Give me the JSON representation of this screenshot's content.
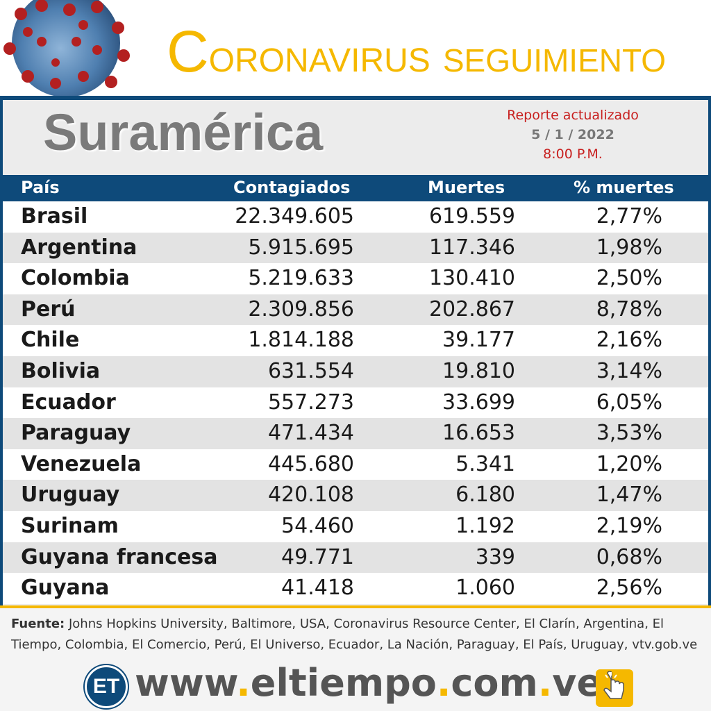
{
  "header": {
    "title_c": "C",
    "title_rest": "ORONAVIRUS",
    "title_2": "SEGUIMIENTO"
  },
  "region": "Suramérica",
  "report": {
    "line1": "Reporte actualizado",
    "date": "5 / 1 / 2022",
    "time": "8:00 P.M."
  },
  "table": {
    "headers": [
      "País",
      "Contagiados",
      "Muertes",
      "% muertes"
    ],
    "rows": [
      {
        "pais": "Brasil",
        "contagiados": "22.349.605",
        "muertes": "619.559",
        "pct": "2,77%"
      },
      {
        "pais": "Argentina",
        "contagiados": "5.915.695",
        "muertes": "117.346",
        "pct": "1,98%"
      },
      {
        "pais": "Colombia",
        "contagiados": "5.219.633",
        "muertes": "130.410",
        "pct": "2,50%"
      },
      {
        "pais": "Perú",
        "contagiados": "2.309.856",
        "muertes": "202.867",
        "pct": "8,78%"
      },
      {
        "pais": "Chile",
        "contagiados": "1.814.188",
        "muertes": "39.177",
        "pct": "2,16%"
      },
      {
        "pais": "Bolivia",
        "contagiados": "631.554",
        "muertes": "19.810",
        "pct": "3,14%"
      },
      {
        "pais": "Ecuador",
        "contagiados": "557.273",
        "muertes": "33.699",
        "pct": "6,05%"
      },
      {
        "pais": "Paraguay",
        "contagiados": "471.434",
        "muertes": "16.653",
        "pct": "3,53%"
      },
      {
        "pais": "Venezuela",
        "contagiados": "445.680",
        "muertes": "5.341",
        "pct": "1,20%"
      },
      {
        "pais": "Uruguay",
        "contagiados": "420.108",
        "muertes": "6.180",
        "pct": "1,47%"
      },
      {
        "pais": "Surinam",
        "contagiados": "54.460",
        "muertes": "1.192",
        "pct": "2,19%"
      },
      {
        "pais": "Guyana francesa",
        "contagiados": "49.771",
        "muertes": "339",
        "pct": "0,68%"
      },
      {
        "pais": "Guyana",
        "contagiados": "41.418",
        "muertes": "1.060",
        "pct": "2,56%"
      }
    ]
  },
  "source": {
    "label": "Fuente:",
    "text": " Johns Hopkins University, Baltimore, USA, Coronavirus Resource Center,  El Clarín, Argentina, El Tiempo, Colombia, El Comercio, Perú, El Universo, Ecuador, La Nación, Paraguay, El País, Uruguay, vtv.gob.ve"
  },
  "brand": {
    "logo": "ET",
    "url_www": "www",
    "url_name": "eltiempo",
    "url_com": "com",
    "url_ve": "ve"
  },
  "colors": {
    "accent_yellow": "#f5b800",
    "navy": "#0e4a7a",
    "red": "#c8201f"
  },
  "icons": [
    "virus-image",
    "click-hand-icon"
  ]
}
